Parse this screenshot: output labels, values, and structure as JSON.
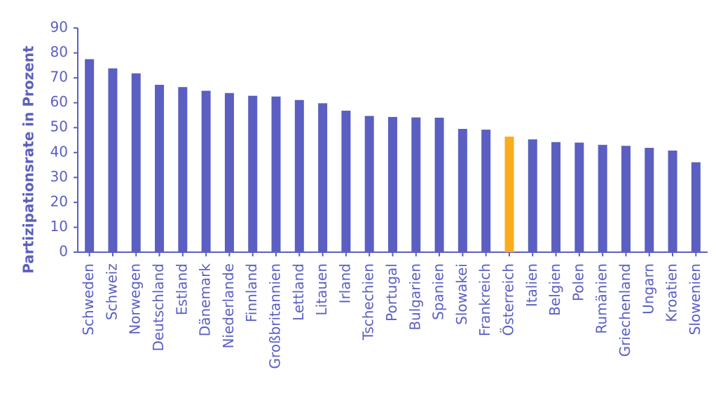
{
  "chart_data": {
    "type": "bar",
    "title": "",
    "xlabel": "",
    "ylabel": "Partizipationsrate in Prozent",
    "ylim": [
      0,
      90
    ],
    "yticks": [
      0,
      10,
      20,
      30,
      40,
      50,
      60,
      70,
      80,
      90
    ],
    "grid": false,
    "legend": "none",
    "categories": [
      "Schweden",
      "Schweiz",
      "Norwegen",
      "Deutschland",
      "Estland",
      "Dänemark",
      "Niederlande",
      "Finnland",
      "Großbritannien",
      "Lettland",
      "Litauen",
      "Irland",
      "Tschechien",
      "Portugal",
      "Bulgarien",
      "Spanien",
      "Slowakei",
      "Frankreich",
      "Österreich",
      "Italien",
      "Belgien",
      "Polen",
      "Rumänien",
      "Griechenland",
      "Ungarn",
      "Kroatien",
      "Slowenien"
    ],
    "values": [
      77.5,
      73.8,
      71.8,
      67.2,
      66.3,
      64.8,
      63.9,
      62.8,
      62.5,
      61.1,
      59.8,
      56.8,
      54.7,
      54.3,
      54.1,
      54.0,
      49.5,
      49.2,
      46.4,
      45.3,
      44.2,
      44.0,
      43.1,
      42.7,
      41.9,
      40.8,
      36.1
    ],
    "highlight_category": "Österreich",
    "colors": {
      "bar": "#5b5fc2",
      "highlight": "#f9ad1c",
      "axis": "#5b5fc2",
      "text": "#5b5fc2"
    }
  }
}
